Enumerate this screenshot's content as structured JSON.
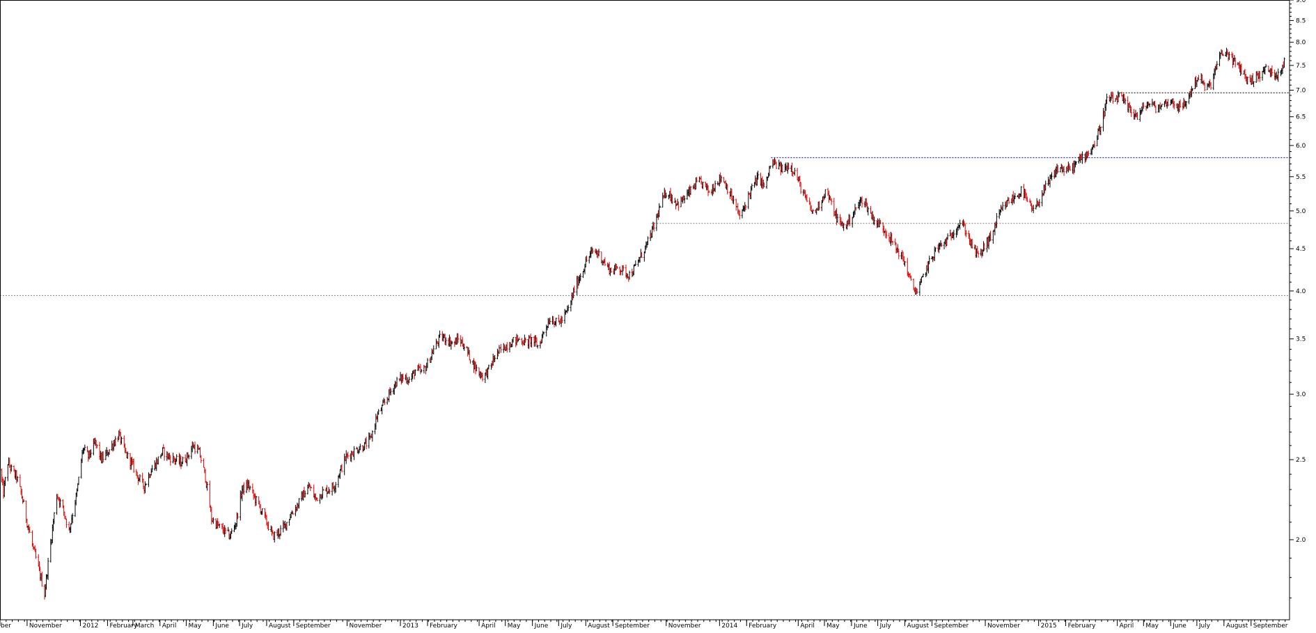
{
  "chart_data": {
    "type": "candlestick",
    "title": "",
    "xlabel": "",
    "ylabel": "",
    "y_scale": "log",
    "ylim": [
      1.6,
      9.0
    ],
    "y_ticks": [
      "2.0",
      "2.5",
      "3.0",
      "3.5",
      "4.0",
      "4.5",
      "5.0",
      "5.5",
      "6.0",
      "6.5",
      "7.0",
      "7.5",
      "8.0",
      "8.5",
      "9.0"
    ],
    "x_range": [
      "2011-10-01",
      "2015-10-15"
    ],
    "x_tick_labels": [
      {
        "label": "ber",
        "date": "2011-10-01"
      },
      {
        "label": "November",
        "date": "2011-11-01"
      },
      {
        "label": "2012",
        "date": "2012-01-01"
      },
      {
        "label": "February",
        "date": "2012-02-01"
      },
      {
        "label": "March",
        "date": "2012-03-01"
      },
      {
        "label": "April",
        "date": "2012-04-01"
      },
      {
        "label": "May",
        "date": "2012-05-01"
      },
      {
        "label": "June",
        "date": "2012-06-01"
      },
      {
        "label": "July",
        "date": "2012-07-01"
      },
      {
        "label": "August",
        "date": "2012-08-01"
      },
      {
        "label": "September",
        "date": "2012-09-01"
      },
      {
        "label": "November",
        "date": "2012-11-01"
      },
      {
        "label": "2013",
        "date": "2013-01-01"
      },
      {
        "label": "February",
        "date": "2013-02-01"
      },
      {
        "label": "April",
        "date": "2013-04-01"
      },
      {
        "label": "May",
        "date": "2013-05-01"
      },
      {
        "label": "June",
        "date": "2013-06-01"
      },
      {
        "label": "July",
        "date": "2013-07-01"
      },
      {
        "label": "August",
        "date": "2013-08-01"
      },
      {
        "label": "September",
        "date": "2013-09-01"
      },
      {
        "label": "November",
        "date": "2013-11-01"
      },
      {
        "label": "2014",
        "date": "2014-01-01"
      },
      {
        "label": "February",
        "date": "2014-02-01"
      },
      {
        "label": "April",
        "date": "2014-04-01"
      },
      {
        "label": "May",
        "date": "2014-05-01"
      },
      {
        "label": "June",
        "date": "2014-06-01"
      },
      {
        "label": "July",
        "date": "2014-07-01"
      },
      {
        "label": "August",
        "date": "2014-08-01"
      },
      {
        "label": "September",
        "date": "2014-09-01"
      },
      {
        "label": "November",
        "date": "2014-11-01"
      },
      {
        "label": "2015",
        "date": "2015-01-01"
      },
      {
        "label": "February",
        "date": "2015-02-01"
      },
      {
        "label": "April",
        "date": "2015-04-01"
      },
      {
        "label": "May",
        "date": "2015-05-01"
      },
      {
        "label": "June",
        "date": "2015-06-01"
      },
      {
        "label": "July",
        "date": "2015-07-01"
      },
      {
        "label": "August",
        "date": "2015-08-01"
      },
      {
        "label": "September",
        "date": "2015-09-01"
      }
    ],
    "price_path": [
      [
        "2011-10-01",
        2.43
      ],
      [
        "2011-10-05",
        2.28
      ],
      [
        "2011-10-10",
        2.48
      ],
      [
        "2011-10-15",
        2.42
      ],
      [
        "2011-10-20",
        2.38
      ],
      [
        "2011-10-25",
        2.28
      ],
      [
        "2011-11-01",
        2.1
      ],
      [
        "2011-11-08",
        1.95
      ],
      [
        "2011-11-15",
        1.83
      ],
      [
        "2011-11-21",
        1.72
      ],
      [
        "2011-11-28",
        1.98
      ],
      [
        "2011-12-05",
        2.27
      ],
      [
        "2011-12-12",
        2.18
      ],
      [
        "2011-12-19",
        2.05
      ],
      [
        "2011-12-28",
        2.28
      ],
      [
        "2012-01-04",
        2.58
      ],
      [
        "2012-01-10",
        2.52
      ],
      [
        "2012-01-18",
        2.62
      ],
      [
        "2012-01-25",
        2.5
      ],
      [
        "2012-02-01",
        2.55
      ],
      [
        "2012-02-08",
        2.62
      ],
      [
        "2012-02-14",
        2.68
      ],
      [
        "2012-02-21",
        2.55
      ],
      [
        "2012-02-28",
        2.48
      ],
      [
        "2012-03-07",
        2.38
      ],
      [
        "2012-03-14",
        2.32
      ],
      [
        "2012-03-21",
        2.42
      ],
      [
        "2012-03-28",
        2.48
      ],
      [
        "2012-04-04",
        2.56
      ],
      [
        "2012-04-11",
        2.52
      ],
      [
        "2012-04-18",
        2.5
      ],
      [
        "2012-04-25",
        2.48
      ],
      [
        "2012-05-02",
        2.52
      ],
      [
        "2012-05-09",
        2.6
      ],
      [
        "2012-05-16",
        2.55
      ],
      [
        "2012-05-23",
        2.38
      ],
      [
        "2012-05-30",
        2.12
      ],
      [
        "2012-06-06",
        2.08
      ],
      [
        "2012-06-13",
        2.05
      ],
      [
        "2012-06-20",
        2.02
      ],
      [
        "2012-06-27",
        2.1
      ],
      [
        "2012-07-04",
        2.3
      ],
      [
        "2012-07-11",
        2.33
      ],
      [
        "2012-07-18",
        2.25
      ],
      [
        "2012-07-25",
        2.18
      ],
      [
        "2012-08-01",
        2.1
      ],
      [
        "2012-08-08",
        2.02
      ],
      [
        "2012-08-15",
        2.04
      ],
      [
        "2012-08-22",
        2.08
      ],
      [
        "2012-08-29",
        2.15
      ],
      [
        "2012-09-05",
        2.2
      ],
      [
        "2012-09-12",
        2.27
      ],
      [
        "2012-09-19",
        2.32
      ],
      [
        "2012-09-26",
        2.24
      ],
      [
        "2012-10-03",
        2.28
      ],
      [
        "2012-10-10",
        2.3
      ],
      [
        "2012-10-17",
        2.32
      ],
      [
        "2012-10-24",
        2.42
      ],
      [
        "2012-10-31",
        2.52
      ],
      [
        "2012-11-07",
        2.55
      ],
      [
        "2012-11-14",
        2.58
      ],
      [
        "2012-11-21",
        2.6
      ],
      [
        "2012-11-28",
        2.65
      ],
      [
        "2012-12-05",
        2.82
      ],
      [
        "2012-12-12",
        2.9
      ],
      [
        "2012-12-19",
        3.0
      ],
      [
        "2012-12-27",
        3.1
      ],
      [
        "2013-01-05",
        3.15
      ],
      [
        "2013-01-12",
        3.12
      ],
      [
        "2013-01-19",
        3.22
      ],
      [
        "2013-01-26",
        3.18
      ],
      [
        "2013-02-02",
        3.28
      ],
      [
        "2013-02-09",
        3.42
      ],
      [
        "2013-02-16",
        3.52
      ],
      [
        "2013-02-23",
        3.5
      ],
      [
        "2013-03-02",
        3.45
      ],
      [
        "2013-03-09",
        3.5
      ],
      [
        "2013-03-16",
        3.42
      ],
      [
        "2013-03-23",
        3.3
      ],
      [
        "2013-03-30",
        3.2
      ],
      [
        "2013-04-06",
        3.15
      ],
      [
        "2013-04-13",
        3.22
      ],
      [
        "2013-04-20",
        3.35
      ],
      [
        "2013-04-27",
        3.4
      ],
      [
        "2013-05-04",
        3.45
      ],
      [
        "2013-05-11",
        3.48
      ],
      [
        "2013-05-18",
        3.5
      ],
      [
        "2013-05-25",
        3.46
      ],
      [
        "2013-06-01",
        3.5
      ],
      [
        "2013-06-08",
        3.42
      ],
      [
        "2013-06-15",
        3.6
      ],
      [
        "2013-06-22",
        3.72
      ],
      [
        "2013-06-29",
        3.65
      ],
      [
        "2013-07-06",
        3.7
      ],
      [
        "2013-07-13",
        3.82
      ],
      [
        "2013-07-20",
        4.05
      ],
      [
        "2013-07-27",
        4.2
      ],
      [
        "2013-08-03",
        4.38
      ],
      [
        "2013-08-10",
        4.48
      ],
      [
        "2013-08-17",
        4.42
      ],
      [
        "2013-08-24",
        4.3
      ],
      [
        "2013-08-31",
        4.22
      ],
      [
        "2013-09-07",
        4.28
      ],
      [
        "2013-09-14",
        4.22
      ],
      [
        "2013-09-21",
        4.18
      ],
      [
        "2013-09-28",
        4.3
      ],
      [
        "2013-10-05",
        4.45
      ],
      [
        "2013-10-12",
        4.6
      ],
      [
        "2013-10-19",
        4.82
      ],
      [
        "2013-10-26",
        5.1
      ],
      [
        "2013-11-02",
        5.3
      ],
      [
        "2013-11-09",
        5.15
      ],
      [
        "2013-11-16",
        5.1
      ],
      [
        "2013-11-23",
        5.2
      ],
      [
        "2013-11-30",
        5.3
      ],
      [
        "2013-12-07",
        5.42
      ],
      [
        "2013-12-14",
        5.38
      ],
      [
        "2013-12-21",
        5.25
      ],
      [
        "2013-12-28",
        5.42
      ],
      [
        "2014-01-04",
        5.5
      ],
      [
        "2014-01-11",
        5.3
      ],
      [
        "2014-01-18",
        5.1
      ],
      [
        "2014-01-25",
        4.9
      ],
      [
        "2014-02-01",
        5.15
      ],
      [
        "2014-02-08",
        5.35
      ],
      [
        "2014-02-15",
        5.5
      ],
      [
        "2014-02-22",
        5.32
      ],
      [
        "2014-03-01",
        5.72
      ],
      [
        "2014-03-08",
        5.68
      ],
      [
        "2014-03-15",
        5.6
      ],
      [
        "2014-03-22",
        5.7
      ],
      [
        "2014-03-29",
        5.55
      ],
      [
        "2014-04-05",
        5.3
      ],
      [
        "2014-04-12",
        5.1
      ],
      [
        "2014-04-19",
        4.95
      ],
      [
        "2014-04-26",
        5.12
      ],
      [
        "2014-05-03",
        5.3
      ],
      [
        "2014-05-10",
        5.05
      ],
      [
        "2014-05-17",
        4.85
      ],
      [
        "2014-05-24",
        4.78
      ],
      [
        "2014-05-31",
        4.9
      ],
      [
        "2014-06-07",
        5.05
      ],
      [
        "2014-06-14",
        5.18
      ],
      [
        "2014-06-21",
        5.0
      ],
      [
        "2014-06-28",
        4.85
      ],
      [
        "2014-07-05",
        4.8
      ],
      [
        "2014-07-12",
        4.7
      ],
      [
        "2014-07-19",
        4.55
      ],
      [
        "2014-07-26",
        4.45
      ],
      [
        "2014-08-02",
        4.3
      ],
      [
        "2014-08-09",
        4.05
      ],
      [
        "2014-08-16",
        3.98
      ],
      [
        "2014-08-23",
        4.2
      ],
      [
        "2014-08-30",
        4.35
      ],
      [
        "2014-09-06",
        4.5
      ],
      [
        "2014-09-13",
        4.55
      ],
      [
        "2014-09-20",
        4.62
      ],
      [
        "2014-09-27",
        4.75
      ],
      [
        "2014-10-04",
        4.85
      ],
      [
        "2014-10-11",
        4.7
      ],
      [
        "2014-10-18",
        4.5
      ],
      [
        "2014-10-25",
        4.4
      ],
      [
        "2014-11-01",
        4.55
      ],
      [
        "2014-11-08",
        4.65
      ],
      [
        "2014-11-15",
        4.9
      ],
      [
        "2014-11-22",
        5.05
      ],
      [
        "2014-11-29",
        5.15
      ],
      [
        "2014-12-06",
        5.2
      ],
      [
        "2014-12-13",
        5.3
      ],
      [
        "2014-12-20",
        5.1
      ],
      [
        "2014-12-27",
        4.98
      ],
      [
        "2015-01-03",
        5.2
      ],
      [
        "2015-01-10",
        5.35
      ],
      [
        "2015-01-17",
        5.5
      ],
      [
        "2015-01-24",
        5.65
      ],
      [
        "2015-01-31",
        5.6
      ],
      [
        "2015-02-07",
        5.62
      ],
      [
        "2015-02-14",
        5.72
      ],
      [
        "2015-02-21",
        5.82
      ],
      [
        "2015-02-28",
        5.9
      ],
      [
        "2015-03-07",
        6.05
      ],
      [
        "2015-03-14",
        6.4
      ],
      [
        "2015-03-21",
        6.85
      ],
      [
        "2015-03-28",
        6.8
      ],
      [
        "2015-04-04",
        6.88
      ],
      [
        "2015-04-11",
        6.7
      ],
      [
        "2015-04-18",
        6.6
      ],
      [
        "2015-04-25",
        6.5
      ],
      [
        "2015-05-02",
        6.7
      ],
      [
        "2015-05-09",
        6.75
      ],
      [
        "2015-05-16",
        6.65
      ],
      [
        "2015-05-23",
        6.72
      ],
      [
        "2015-05-30",
        6.8
      ],
      [
        "2015-06-06",
        6.75
      ],
      [
        "2015-06-13",
        6.65
      ],
      [
        "2015-06-20",
        6.8
      ],
      [
        "2015-06-27",
        7.1
      ],
      [
        "2015-07-04",
        7.3
      ],
      [
        "2015-07-11",
        7.0
      ],
      [
        "2015-07-18",
        7.15
      ],
      [
        "2015-07-25",
        7.6
      ],
      [
        "2015-08-01",
        7.8
      ],
      [
        "2015-08-08",
        7.7
      ],
      [
        "2015-08-15",
        7.5
      ],
      [
        "2015-08-22",
        7.4
      ],
      [
        "2015-08-29",
        7.15
      ],
      [
        "2015-09-05",
        7.25
      ],
      [
        "2015-09-12",
        7.32
      ],
      [
        "2015-09-19",
        7.45
      ],
      [
        "2015-09-26",
        7.3
      ],
      [
        "2015-10-03",
        7.35
      ],
      [
        "2015-10-10",
        7.6
      ]
    ],
    "reference_lines": [
      {
        "y": 3.95,
        "x_start": "2011-10-01",
        "color": "#808080"
      },
      {
        "y": 4.83,
        "x_start": "2013-10-15",
        "color": "#808080"
      },
      {
        "y": 5.8,
        "x_start": "2014-03-01",
        "color": "#0000c0"
      },
      {
        "y": 6.95,
        "x_start": "2015-04-01",
        "color": "#000000"
      }
    ],
    "colors": {
      "up": "#000000",
      "down": "#e00000",
      "axis": "#000000"
    },
    "grid": false,
    "legend": "none"
  }
}
